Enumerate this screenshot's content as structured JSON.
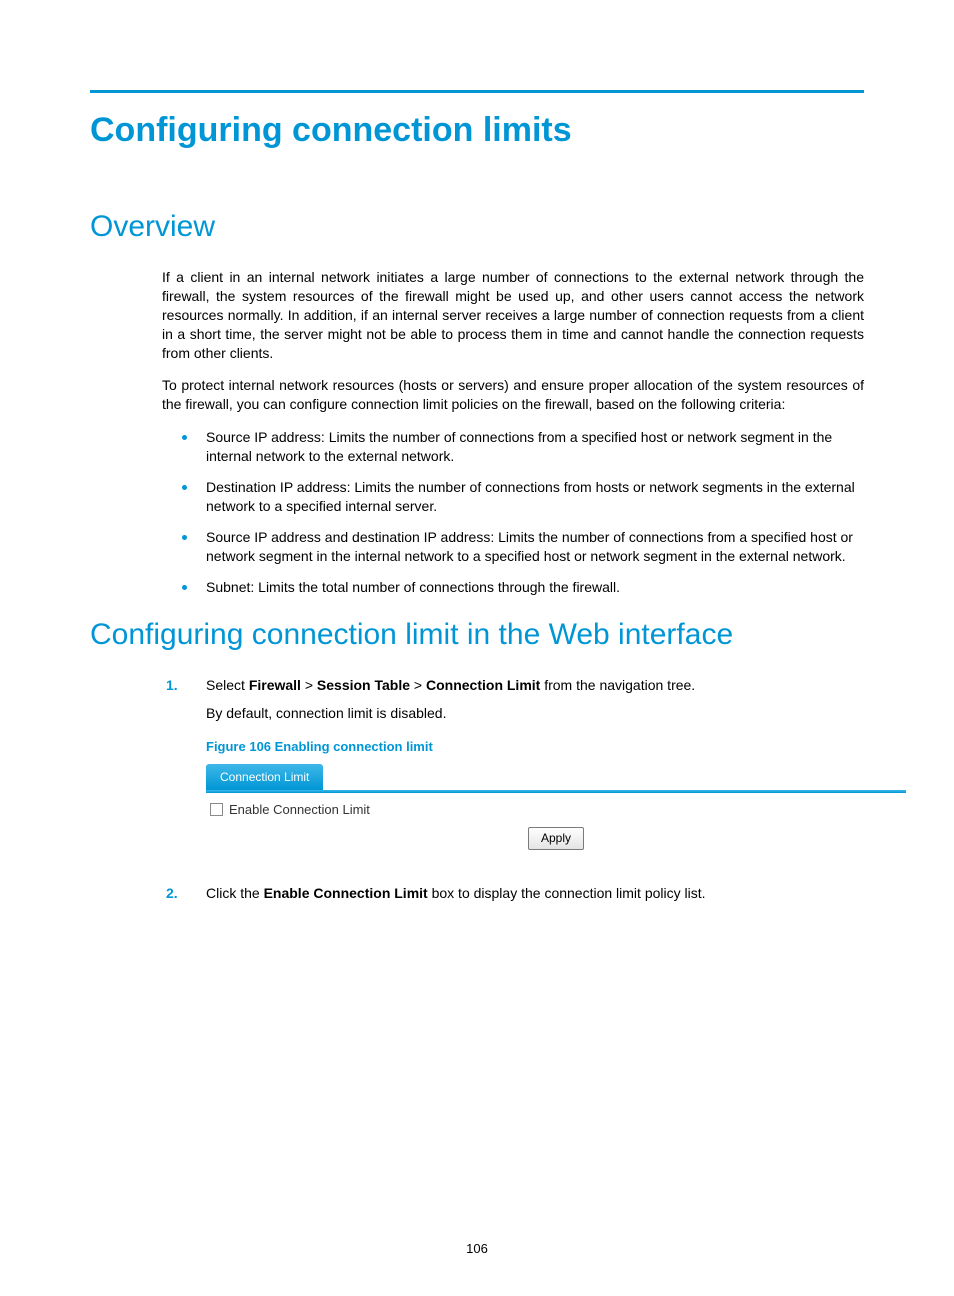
{
  "colors": {
    "accent": "#0096d6",
    "text": "#000000",
    "background": "#ffffff",
    "tab_gradient_top": "#3fb8e8",
    "tab_gradient_bottom": "#0096d6",
    "button_border": "#7a7a7a",
    "button_bg_top": "#ffffff",
    "button_bg_bottom": "#e4e4e4",
    "checkbox_border": "#8a8a8a"
  },
  "typography": {
    "h1_size_pt": 26,
    "h2_size_pt": 22,
    "body_size_pt": 10.5,
    "figcap_size_pt": 10,
    "h_font": "Futura / Century Gothic",
    "body_font": "Verdana"
  },
  "title": "Configuring connection limits",
  "sections": {
    "overview": {
      "heading": "Overview",
      "para1": "If a client in an internal network initiates a large number of connections to the external network through the firewall, the system resources of the firewall might be used up, and other users cannot access the network resources normally. In addition, if an internal server receives a large number of connection requests from a client in a short time, the server might not be able to process them in time and cannot handle the connection requests from other clients.",
      "para2": "To protect internal network resources (hosts or servers) and ensure proper allocation of the system resources of the firewall, you can configure connection limit policies on the firewall, based on the following criteria:",
      "bullets": [
        "Source IP address: Limits the number of connections from a specified host or network segment in the internal network to the external network.",
        "Destination IP address: Limits the number of connections from hosts or network segments in the external network to a specified internal server.",
        "Source IP address and destination IP address: Limits the number of connections from a specified host or network segment in the internal network to a specified host or network segment in the external network.",
        "Subnet: Limits the total number of connections through the firewall."
      ]
    },
    "webconfig": {
      "heading": "Configuring connection limit in the Web interface",
      "step1_pre": "Select ",
      "step1_nav1": "Firewall",
      "step1_sep": " > ",
      "step1_nav2": "Session Table",
      "step1_nav3": "Connection Limit",
      "step1_post": " from the navigation tree.",
      "step1_sub": "By default, connection limit is disabled.",
      "figcap": "Figure 106 Enabling connection limit",
      "step2_pre": "Click the ",
      "step2_bold": "Enable Connection Limit",
      "step2_post": " box to display the connection limit policy list."
    }
  },
  "ui": {
    "tab_label": "Connection Limit",
    "checkbox_label": "Enable Connection Limit",
    "checkbox_checked": false,
    "apply_label": "Apply"
  },
  "page_number": "106"
}
